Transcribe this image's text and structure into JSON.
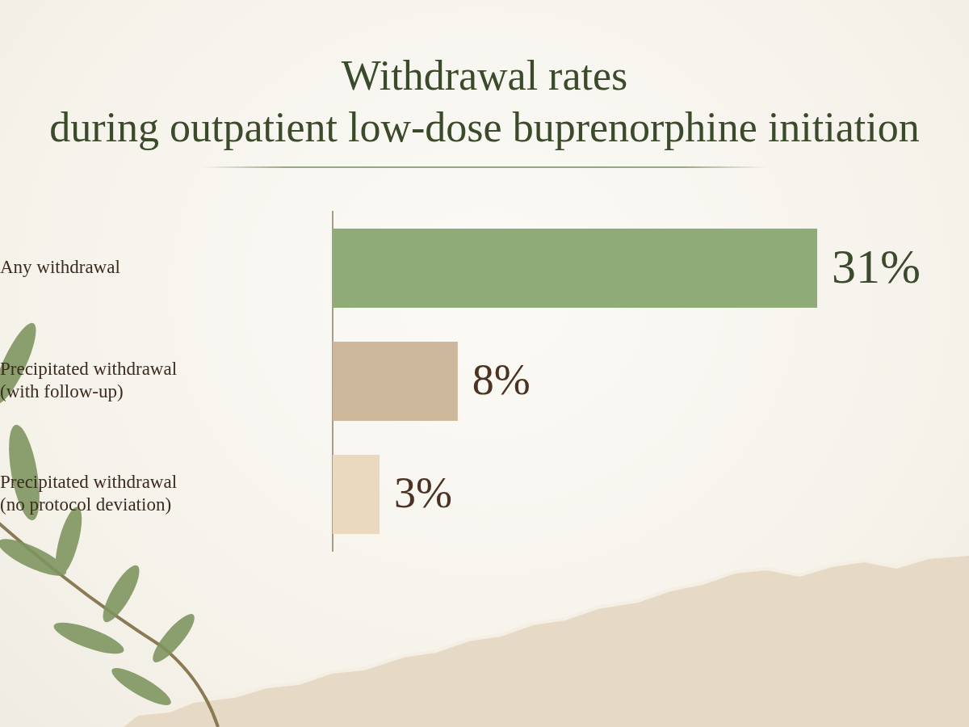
{
  "chart_data": {
    "type": "bar",
    "orientation": "horizontal",
    "title": "Withdrawal rates during outpatient low-dose buprenorphine initiation",
    "categories": [
      "Any withdrawal",
      "Precipitated withdrawal (with follow-up)",
      "Precipitated withdrawal (no protocol deviation)"
    ],
    "values": [
      31,
      8,
      3
    ],
    "value_labels": [
      "31%",
      "8%",
      "3%"
    ],
    "colors": [
      "#8fab78",
      "#cdb89b",
      "#ead9be"
    ],
    "xlim": [
      0,
      31
    ],
    "grid": false,
    "data_labels": true,
    "tick_labels": "y"
  }
}
